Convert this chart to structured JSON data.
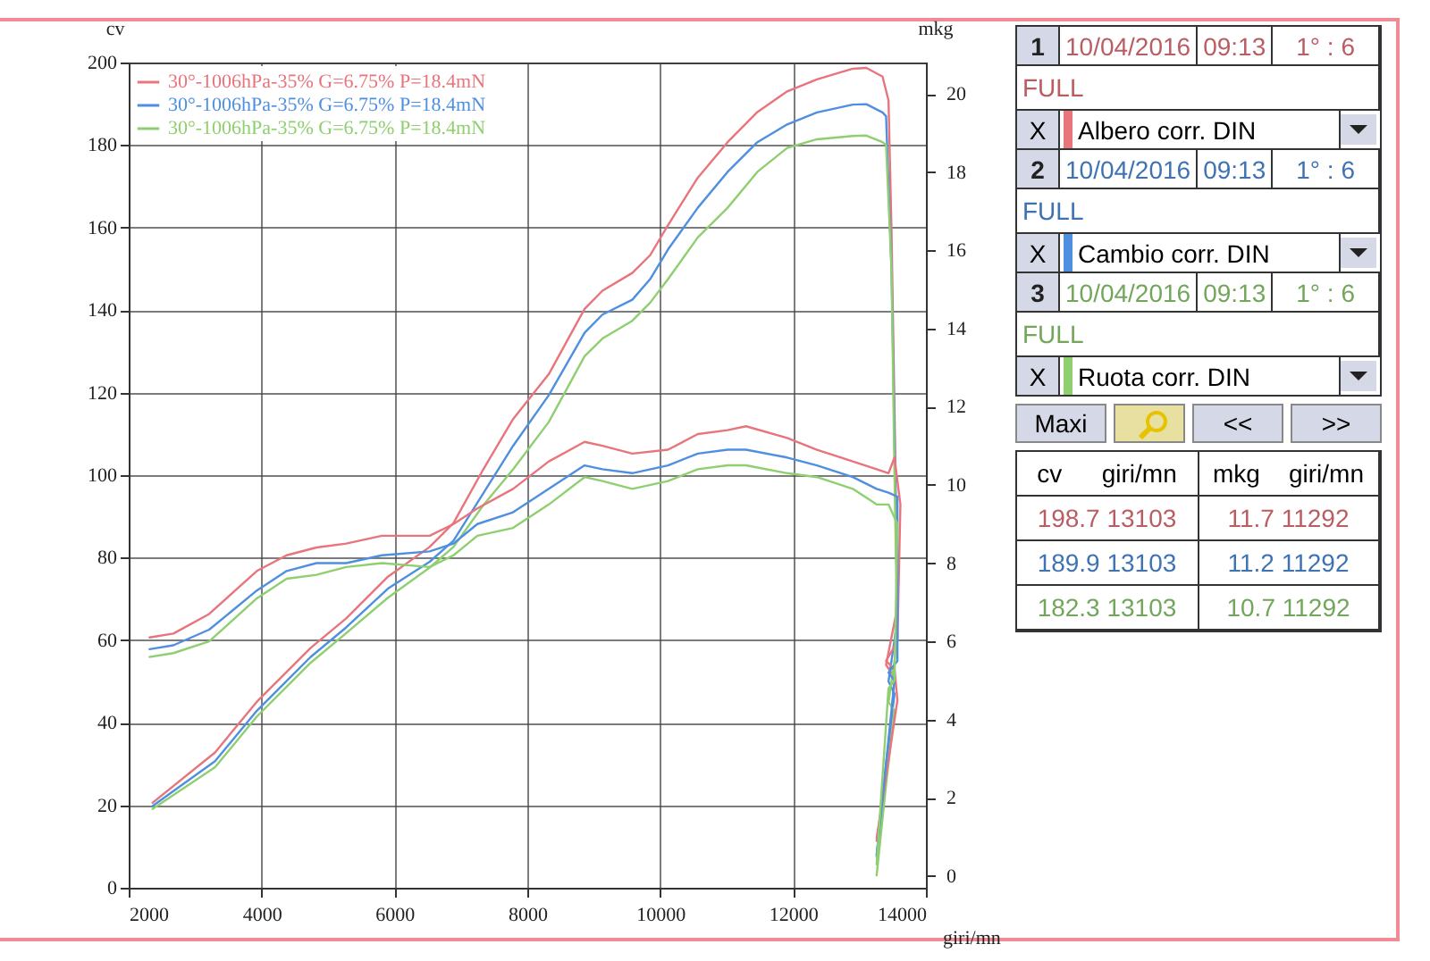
{
  "chart_data": {
    "type": "line",
    "xlabel": "giri/mn",
    "ylabel": "cv",
    "y2label": "mkg",
    "xlim": [
      2000,
      14000
    ],
    "xticks": [
      2000,
      4000,
      6000,
      8000,
      10000,
      12000,
      14000
    ],
    "ylim": [
      0,
      200
    ],
    "yticks": [
      0,
      20,
      40,
      60,
      80,
      100,
      120,
      140,
      160,
      180,
      200
    ],
    "y2lim": [
      -0.3,
      20.8
    ],
    "y2ticks": [
      0,
      2,
      4,
      6,
      8,
      10,
      12,
      14,
      16,
      18,
      20
    ],
    "grid": true,
    "legend": "top left",
    "series": [
      {
        "name": "30°-1006hPa-35% G=6.75% P=18.4mN",
        "color": "#e8747c",
        "x": [
          2359,
          3300,
          3929,
          4736,
          5274,
          5902,
          6530,
          6889,
          7337,
          7786,
          8324,
          8862,
          9131,
          9580,
          9849,
          10118,
          10566,
          11015,
          11463,
          11912,
          12360,
          12899,
          13103,
          13347,
          13437,
          13482,
          13527,
          13571,
          13400,
          13527,
          13437,
          13258
        ],
        "values": [
          20.6,
          32.8,
          45.1,
          58.1,
          65.3,
          75.4,
          82.6,
          88.4,
          101.4,
          113.6,
          124.5,
          140.3,
          144.7,
          149,
          153.3,
          160.6,
          172.1,
          180.7,
          188,
          193,
          195.9,
          198.5,
          198.7,
          196.6,
          190.8,
          159,
          116,
          68,
          54,
          51,
          31,
          12
        ]
      },
      {
        "name": "30°-1006hPa-35% G=6.75% P=18.4mN",
        "color": "#4f8fe0",
        "x": [
          2359,
          3300,
          3929,
          4736,
          5274,
          5902,
          6530,
          6889,
          7337,
          7786,
          8324,
          8862,
          9131,
          9580,
          9849,
          10118,
          10566,
          11015,
          11463,
          11912,
          12360,
          12899,
          13103,
          13347,
          13400,
          13482,
          13527,
          13571,
          13437,
          13527,
          13400,
          13258
        ],
        "values": [
          19.8,
          30.7,
          42.9,
          55.9,
          63.1,
          72.5,
          79,
          84.1,
          95.6,
          107.1,
          119.4,
          134.5,
          138.9,
          142.5,
          147.5,
          154.7,
          164.8,
          173.5,
          180.7,
          185,
          187.9,
          189.8,
          189.9,
          187.9,
          187,
          150,
          110,
          65,
          50,
          47,
          30,
          8
        ]
      },
      {
        "name": "30°-1006hPa-35% G=6.75% P=18.4mN",
        "color": "#8fcf70",
        "x": [
          2359,
          3300,
          3929,
          4736,
          5274,
          5902,
          6530,
          6889,
          7337,
          7786,
          8324,
          8862,
          9131,
          9580,
          9849,
          10118,
          10566,
          11015,
          11463,
          11912,
          12360,
          12899,
          13103,
          13347,
          13400,
          13482,
          13527,
          13571,
          13437,
          13527,
          13400,
          13258
        ],
        "values": [
          19.1,
          29.2,
          41.5,
          54.5,
          61.7,
          70.3,
          77.6,
          82.6,
          92.7,
          101.4,
          112.9,
          128.8,
          133.1,
          137.4,
          141.8,
          147.5,
          157.6,
          164.8,
          173.5,
          179.3,
          181.4,
          182.2,
          182.3,
          180.7,
          180,
          150,
          100,
          60,
          45,
          43,
          25,
          3
        ]
      },
      {
        "color": "#e8747c",
        "axis": "y2",
        "x": [
          2314,
          2673,
          3211,
          3929,
          4377,
          4826,
          5274,
          5812,
          6530,
          6889,
          7248,
          7786,
          8324,
          8862,
          9131,
          9580,
          10118,
          10566,
          11015,
          11292,
          11912,
          12360,
          12899,
          13258,
          13437,
          13527,
          13616,
          13571,
          13400,
          13527,
          13571,
          13258
        ],
        "values": [
          6.1,
          6.2,
          6.7,
          7.8,
          8.2,
          8.4,
          8.5,
          8.7,
          8.7,
          9,
          9.4,
          9.9,
          10.6,
          11.1,
          11,
          10.8,
          10.9,
          11.3,
          11.4,
          11.5,
          11.2,
          10.9,
          10.6,
          10.4,
          10.3,
          10.7,
          9.5,
          6,
          5.5,
          5.3,
          4.5,
          0.9
        ]
      },
      {
        "color": "#4f8fe0",
        "axis": "y2",
        "x": [
          2314,
          2673,
          3211,
          3929,
          4377,
          4826,
          5274,
          5812,
          6530,
          6889,
          7248,
          7786,
          8324,
          8862,
          9131,
          9580,
          10118,
          10566,
          11015,
          11292,
          11912,
          12360,
          12899,
          13258,
          13437,
          13571,
          13571,
          13437,
          13527,
          13258
        ],
        "values": [
          5.8,
          5.9,
          6.3,
          7.3,
          7.8,
          8,
          8,
          8.2,
          8.3,
          8.5,
          9,
          9.3,
          9.9,
          10.5,
          10.4,
          10.3,
          10.5,
          10.8,
          10.9,
          10.9,
          10.7,
          10.5,
          10.2,
          9.9,
          9.8,
          9.7,
          5.5,
          5.2,
          5,
          0.5
        ]
      },
      {
        "color": "#8fcf70",
        "axis": "y2",
        "x": [
          2314,
          2673,
          3211,
          3929,
          4377,
          4826,
          5274,
          5812,
          6530,
          6889,
          7248,
          7786,
          8324,
          8862,
          9131,
          9580,
          10118,
          10566,
          11015,
          11292,
          11912,
          12360,
          12899,
          13258,
          13437,
          13571,
          13527,
          13437,
          13258
        ],
        "values": [
          5.6,
          5.7,
          6,
          7.1,
          7.6,
          7.7,
          7.9,
          8,
          7.9,
          8.2,
          8.7,
          8.9,
          9.5,
          10.2,
          10.1,
          9.9,
          10.1,
          10.4,
          10.5,
          10.5,
          10.3,
          10.2,
          9.9,
          9.5,
          9.5,
          9,
          5,
          4.8,
          0.3
        ]
      }
    ],
    "annotations": [
      "1",
      "10/04/2016",
      "09:13",
      "1° : 6",
      "FULL",
      "X",
      "Albero corr. DIN",
      "2",
      "10/04/2016",
      "09:13",
      "1° : 6",
      "FULL",
      "X",
      "Cambio corr. DIN",
      "3",
      "10/04/2016",
      "09:13",
      "1° : 6",
      "FULL",
      "X",
      "Ruota corr. DIN",
      "Maxi",
      "<<",
      ">>",
      "cv",
      "giri/mn",
      "mkg",
      "giri/mn",
      "198.7 13103",
      "11.7 11292",
      "189.9 13103",
      "11.2 11292",
      "182.3 13103",
      "10.7 11292"
    ]
  }
}
